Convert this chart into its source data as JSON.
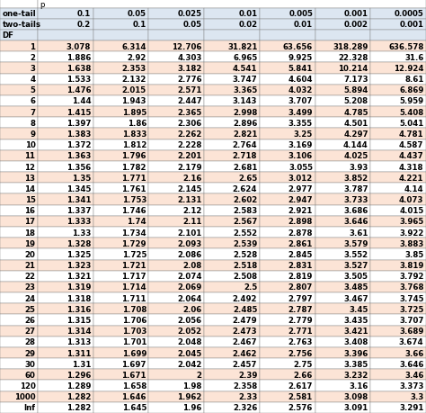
{
  "rows": [
    [
      "1",
      "3.078",
      "6.314",
      "12.706",
      "31.821",
      "63.656",
      "318.289",
      "636.578"
    ],
    [
      "2",
      "1.886",
      "2.92",
      "4.303",
      "6.965",
      "9.925",
      "22.328",
      "31.6"
    ],
    [
      "3",
      "1.638",
      "2.353",
      "3.182",
      "4.541",
      "5.841",
      "10.214",
      "12.924"
    ],
    [
      "4",
      "1.533",
      "2.132",
      "2.776",
      "3.747",
      "4.604",
      "7.173",
      "8.61"
    ],
    [
      "5",
      "1.476",
      "2.015",
      "2.571",
      "3.365",
      "4.032",
      "5.894",
      "6.869"
    ],
    [
      "6",
      "1.44",
      "1.943",
      "2.447",
      "3.143",
      "3.707",
      "5.208",
      "5.959"
    ],
    [
      "7",
      "1.415",
      "1.895",
      "2.365",
      "2.998",
      "3.499",
      "4.785",
      "5.408"
    ],
    [
      "8",
      "1.397",
      "1.86",
      "2.306",
      "2.896",
      "3.355",
      "4.501",
      "5.041"
    ],
    [
      "9",
      "1.383",
      "1.833",
      "2.262",
      "2.821",
      "3.25",
      "4.297",
      "4.781"
    ],
    [
      "10",
      "1.372",
      "1.812",
      "2.228",
      "2.764",
      "3.169",
      "4.144",
      "4.587"
    ],
    [
      "11",
      "1.363",
      "1.796",
      "2.201",
      "2.718",
      "3.106",
      "4.025",
      "4.437"
    ],
    [
      "12",
      "1.356",
      "1.782",
      "2.179",
      "2.681",
      "3.055",
      "3.93",
      "4.318"
    ],
    [
      "13",
      "1.35",
      "1.771",
      "2.16",
      "2.65",
      "3.012",
      "3.852",
      "4.221"
    ],
    [
      "14",
      "1.345",
      "1.761",
      "2.145",
      "2.624",
      "2.977",
      "3.787",
      "4.14"
    ],
    [
      "15",
      "1.341",
      "1.753",
      "2.131",
      "2.602",
      "2.947",
      "3.733",
      "4.073"
    ],
    [
      "16",
      "1.337",
      "1.746",
      "2.12",
      "2.583",
      "2.921",
      "3.686",
      "4.015"
    ],
    [
      "17",
      "1.333",
      "1.74",
      "2.11",
      "2.567",
      "2.898",
      "3.646",
      "3.965"
    ],
    [
      "18",
      "1.33",
      "1.734",
      "2.101",
      "2.552",
      "2.878",
      "3.61",
      "3.922"
    ],
    [
      "19",
      "1.328",
      "1.729",
      "2.093",
      "2.539",
      "2.861",
      "3.579",
      "3.883"
    ],
    [
      "20",
      "1.325",
      "1.725",
      "2.086",
      "2.528",
      "2.845",
      "3.552",
      "3.85"
    ],
    [
      "21",
      "1.323",
      "1.721",
      "2.08",
      "2.518",
      "2.831",
      "3.527",
      "3.819"
    ],
    [
      "22",
      "1.321",
      "1.717",
      "2.074",
      "2.508",
      "2.819",
      "3.505",
      "3.792"
    ],
    [
      "23",
      "1.319",
      "1.714",
      "2.069",
      "2.5",
      "2.807",
      "3.485",
      "3.768"
    ],
    [
      "24",
      "1.318",
      "1.711",
      "2.064",
      "2.492",
      "2.797",
      "3.467",
      "3.745"
    ],
    [
      "25",
      "1.316",
      "1.708",
      "2.06",
      "2.485",
      "2.787",
      "3.45",
      "3.725"
    ],
    [
      "26",
      "1.315",
      "1.706",
      "2.056",
      "2.479",
      "2.779",
      "3.435",
      "3.707"
    ],
    [
      "27",
      "1.314",
      "1.703",
      "2.052",
      "2.473",
      "2.771",
      "3.421",
      "3.689"
    ],
    [
      "28",
      "1.313",
      "1.701",
      "2.048",
      "2.467",
      "2.763",
      "3.408",
      "3.674"
    ],
    [
      "29",
      "1.311",
      "1.699",
      "2.045",
      "2.462",
      "2.756",
      "3.396",
      "3.66"
    ],
    [
      "30",
      "1.31",
      "1.697",
      "2.042",
      "2.457",
      "2.75",
      "3.385",
      "3.646"
    ],
    [
      "60",
      "1.296",
      "1.671",
      "2",
      "2.39",
      "2.66",
      "3.232",
      "3.46"
    ],
    [
      "120",
      "1.289",
      "1.658",
      "1.98",
      "2.358",
      "2.617",
      "3.16",
      "3.373"
    ],
    [
      "1000",
      "1.282",
      "1.646",
      "1.962",
      "2.33",
      "2.581",
      "3.098",
      "3.3"
    ],
    [
      "Inf",
      "1.282",
      "1.645",
      "1.96",
      "2.326",
      "2.576",
      "3.091",
      "3.291"
    ]
  ],
  "one_tail": [
    "0.1",
    "0.05",
    "0.025",
    "0.01",
    "0.005",
    "0.001",
    "0.0005"
  ],
  "two_tail": [
    "0.2",
    "0.1",
    "0.05",
    "0.02",
    "0.01",
    "0.002",
    "0.001"
  ],
  "bg_odd": "#fce4d6",
  "bg_even": "#ffffff",
  "header_bg": "#dce6f1",
  "border_color": "#7f7f7f",
  "fontsize": 6.2,
  "header_fontsize": 6.2
}
